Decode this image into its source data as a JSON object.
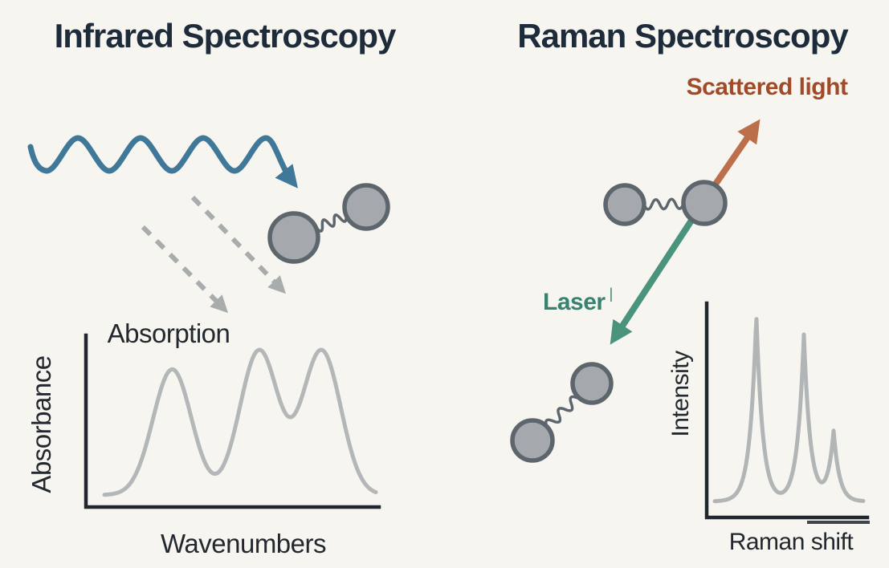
{
  "titles": {
    "left": "Infrared Spectroscopy",
    "right": "Raman Spectroscopy"
  },
  "annotations": {
    "scattered_light": "Scattered light",
    "laser": "Laser",
    "laser_mark": "|"
  },
  "colors": {
    "background": "#f7f5f0",
    "ink": "#1e2b3a",
    "label": "#22282e",
    "wave_blue": "#3f7899",
    "dashed_gray": "#a9acad",
    "laser_green": "#4a937c",
    "laser_text": "#37836f",
    "scatter_orange": "#bc6f4b",
    "scatter_text": "#a04a28",
    "atom_fill": "#a5a9ad",
    "atom_stroke": "#5c666c",
    "axis": "#20272e"
  },
  "chart_data": [
    {
      "type": "line",
      "title": "Absorption",
      "xlabel": "Wavenumbers",
      "ylabel": "Absorbance",
      "axis_style": "L-shaped, no ticks, qualitative axes",
      "line_color": "#b4b7b8",
      "peaks": [
        {
          "x_frac": 0.25,
          "height_frac": 0.87,
          "width_frac": 0.071,
          "shape": "gaussian"
        },
        {
          "x_frac": 0.57,
          "height_frac": 1.0,
          "width_frac": 0.071,
          "shape": "gaussian"
        },
        {
          "x_frac": 0.8,
          "height_frac": 1.0,
          "width_frac": 0.071,
          "shape": "gaussian"
        }
      ]
    },
    {
      "type": "line",
      "title": "",
      "xlabel": "Raman shift",
      "ylabel": "Intensity",
      "axis_style": "L-shaped, no ticks, qualitative axes",
      "line_color": "#b2b5b6",
      "peaks": [
        {
          "x_frac": 0.28,
          "height_frac": 1.0,
          "width_frac": 0.043,
          "shape": "exponential"
        },
        {
          "x_frac": 0.6,
          "height_frac": 0.89,
          "width_frac": 0.043,
          "shape": "exponential"
        },
        {
          "x_frac": 0.8,
          "height_frac": 0.37,
          "width_frac": 0.039,
          "shape": "exponential"
        }
      ]
    }
  ]
}
